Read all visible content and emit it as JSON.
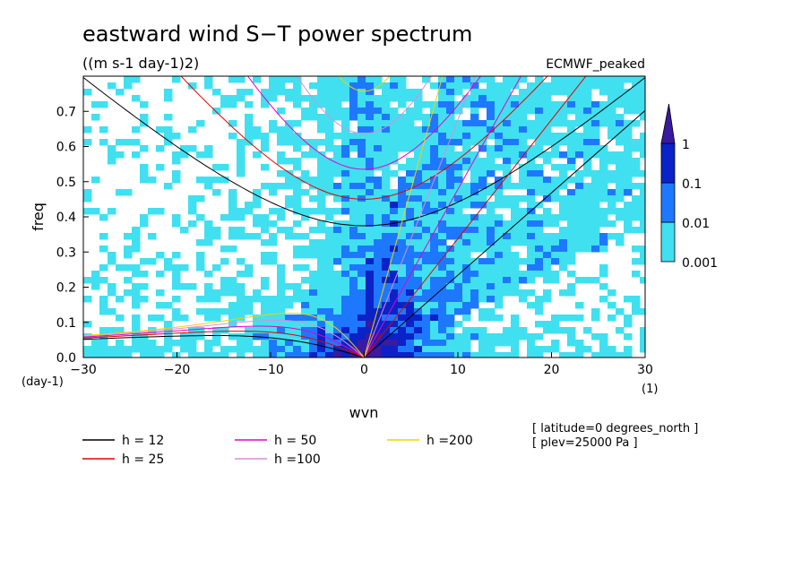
{
  "chart_data": {
    "type": "heatmap",
    "title": "eastward wind S−T power spectrum",
    "subtitle": "((m s-1 day-1)2)",
    "dataset_label": "ECMWF_peaked",
    "xlabel": "wvn",
    "ylabel": "freq",
    "x_unit": "(1)",
    "y_unit": "(day-1)",
    "xlim": [
      -30,
      30
    ],
    "ylim": [
      0,
      0.8
    ],
    "x_ticks": [
      -30,
      -20,
      -10,
      0,
      10,
      20,
      30
    ],
    "x_tick_labels": [
      "−30",
      "−20",
      "−10",
      "0",
      "10",
      "20",
      "30"
    ],
    "y_ticks": [
      0.0,
      0.1,
      0.2,
      0.3,
      0.4,
      0.5,
      0.6,
      0.7
    ],
    "y_tick_labels": [
      "0.0",
      "0.1",
      "0.2",
      "0.3",
      "0.4",
      "0.5",
      "0.6",
      "0.7"
    ],
    "colorbar": {
      "levels": [
        0.001,
        0.01,
        0.1,
        1
      ],
      "labels": [
        "0.001",
        "0.01",
        "0.1",
        "1"
      ],
      "colors": [
        "#40e0f0",
        "#1e78ff",
        "#0a22c8",
        "#3a1aa0"
      ],
      "extend": "max"
    },
    "dispersion_curves": [
      {
        "name": "h = 12",
        "h": 12,
        "color": "#000000"
      },
      {
        "name": "h = 25",
        "h": 25,
        "color": "#e60000"
      },
      {
        "name": "h = 50",
        "h": 50,
        "color": "#e600c8"
      },
      {
        "name": "h =100",
        "h": 100,
        "color": "#dc8cdc"
      },
      {
        "name": "h =200",
        "h": 200,
        "color": "#f0d200"
      }
    ],
    "annotations": [
      "[ latitude=0 degrees_north ]",
      "[ plev=25000 Pa ]"
    ],
    "grid": false,
    "legend_placement": "bottom"
  }
}
